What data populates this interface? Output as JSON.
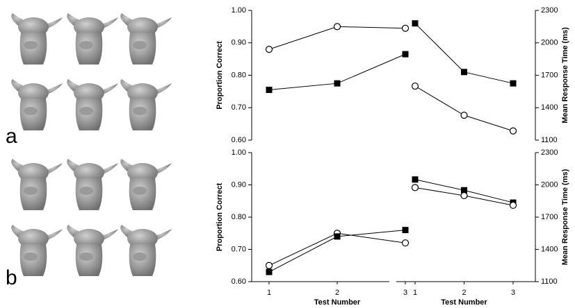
{
  "chart_data": [
    {
      "type": "line",
      "panel_label": "a",
      "ylabel": "Proportion Correct",
      "categories": [
        null,
        null,
        null
      ],
      "ylim": [
        0.6,
        1.0
      ],
      "yticks": [
        {
          "value": 0.6,
          "label": "0.60"
        },
        {
          "value": 0.7,
          "label": "0.70"
        },
        {
          "value": 0.8,
          "label": "0.80"
        },
        {
          "value": 0.9,
          "label": "0.90"
        },
        {
          "value": 1.0,
          "label": "1.00"
        }
      ],
      "series": [
        {
          "marker": "circle",
          "color": "#000000",
          "values": [
            0.88,
            0.95,
            0.945
          ]
        },
        {
          "marker": "square",
          "color": "#000000",
          "values": [
            0.755,
            0.775,
            0.865
          ]
        }
      ]
    },
    {
      "type": "line",
      "ylabel": "Mean Response Time (ms)",
      "categories": [
        null,
        null,
        null
      ],
      "y2lim": [
        1100,
        2300
      ],
      "y2ticks": [
        1100,
        1400,
        1700,
        2000,
        2300
      ],
      "series": [
        {
          "marker": "square",
          "color": "#000000",
          "axis": "y2",
          "values": [
            2180,
            1730,
            1625
          ]
        },
        {
          "marker": "circle",
          "color": "#000000",
          "axis": "y2",
          "values": [
            1600,
            1330,
            1185
          ]
        }
      ]
    },
    {
      "type": "line",
      "panel_label": "b",
      "ylabel": "Proportion Correct",
      "xlabel": "Test Number",
      "categories": [
        "1",
        "2",
        "3"
      ],
      "ylim": [
        0.6,
        1.0
      ],
      "yticks": [
        {
          "value": 0.6,
          "label": "0.60"
        },
        {
          "value": 0.7,
          "label": "0.70"
        },
        {
          "value": 0.8,
          "label": "0.80"
        },
        {
          "value": 0.9,
          "label": "0.90"
        },
        {
          "value": 1.0,
          "label": "1.00"
        }
      ],
      "series": [
        {
          "marker": "circle",
          "color": "#000000",
          "values": [
            0.65,
            0.75,
            0.72
          ]
        },
        {
          "marker": "square",
          "color": "#000000",
          "values": [
            0.63,
            0.74,
            0.76
          ]
        }
      ]
    },
    {
      "type": "line",
      "ylabel": "Mean Response Time (ms)",
      "xlabel": "Test Number",
      "categories": [
        "1",
        "2",
        "3"
      ],
      "y2lim": [
        1100,
        2300
      ],
      "y2ticks": [
        1100,
        1400,
        1700,
        2000,
        2300
      ],
      "series": [
        {
          "marker": "square",
          "color": "#000000",
          "axis": "y2",
          "values": [
            2050,
            1950,
            1835
          ]
        },
        {
          "marker": "circle",
          "color": "#000000",
          "axis": "y2",
          "values": [
            1975,
            1900,
            1810
          ]
        }
      ]
    }
  ]
}
